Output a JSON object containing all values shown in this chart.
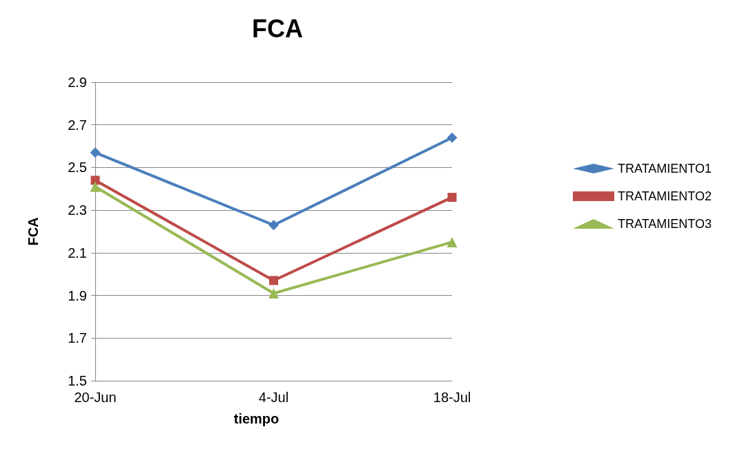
{
  "chart_data": {
    "type": "line",
    "title": "FCA",
    "xlabel": "tiempo",
    "ylabel": "FCA",
    "categories": [
      "20-Jun",
      "4-Jul",
      "18-Jul"
    ],
    "ylim": [
      1.5,
      2.9
    ],
    "yticks": [
      1.5,
      1.7,
      1.9,
      2.1,
      2.3,
      2.5,
      2.7,
      2.9
    ],
    "grid": "y",
    "legend": "right",
    "series": [
      {
        "name": "TRATAMIENTO1",
        "color": "#4a7ebb",
        "marker": "diamond",
        "values": [
          2.57,
          2.23,
          2.64
        ]
      },
      {
        "name": "TRATAMIENTO2",
        "color": "#be4b48",
        "marker": "square",
        "values": [
          2.44,
          1.97,
          2.36
        ]
      },
      {
        "name": "TRATAMIENTO3",
        "color": "#98b954",
        "marker": "triangle",
        "values": [
          2.41,
          1.91,
          2.15
        ]
      }
    ]
  }
}
